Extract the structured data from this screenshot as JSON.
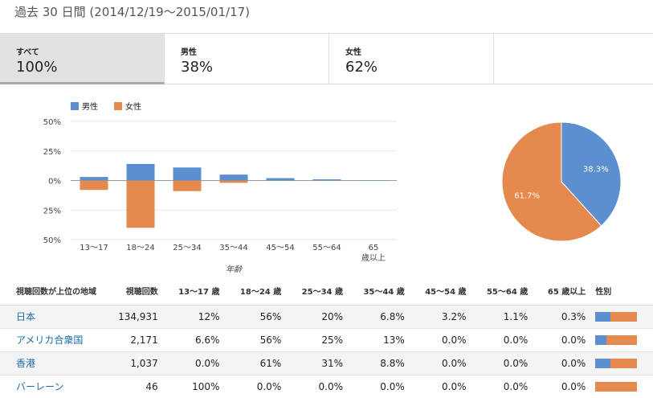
{
  "header": {
    "title": "過去 30 日間 (2014/12/19～2015/01/17)"
  },
  "tabs": [
    {
      "label": "すべて",
      "value": "100%"
    },
    {
      "label": "男性",
      "value": "38%"
    },
    {
      "label": "女性",
      "value": "62%"
    },
    {
      "label": "",
      "value": ""
    }
  ],
  "legend": {
    "male": "男性",
    "female": "女性"
  },
  "colors": {
    "male": "#5b8fcf",
    "female": "#e58a4e"
  },
  "chart_data": [
    {
      "type": "bar",
      "categories": [
        "13～17",
        "18～24",
        "25～34",
        "35～44",
        "45～54",
        "55～64",
        "65 歳以上"
      ],
      "series": [
        {
          "name": "男性",
          "values": [
            3,
            14,
            11,
            5,
            2,
            1,
            0.3
          ]
        },
        {
          "name": "女性",
          "values": [
            -8,
            -40,
            -9,
            -2,
            0,
            0,
            0
          ]
        }
      ],
      "xlabel": "年齢",
      "ylabel": "",
      "ylim": [
        -50,
        50
      ],
      "yticks": [
        "50%",
        "25%",
        "0%",
        "25%",
        "50%"
      ],
      "grid": true,
      "legend_position": "top-left"
    },
    {
      "type": "pie",
      "labels": [
        "男性",
        "女性"
      ],
      "values": [
        38.3,
        61.7
      ],
      "data_labels": [
        "38.3%",
        "61.7%"
      ]
    }
  ],
  "table": {
    "headers": [
      "視聴回数が上位の地域",
      "視聴回数",
      "13～17 歳",
      "18～24 歳",
      "25～34 歳",
      "35～44 歳",
      "45～54 歳",
      "55～64 歳",
      "65 歳以上",
      "性別"
    ],
    "rows": [
      {
        "region": "日本",
        "views": "134,931",
        "cells": [
          "12%",
          "56%",
          "20%",
          "6.8%",
          "3.2%",
          "1.1%",
          "0.3%"
        ],
        "male": 36
      },
      {
        "region": "アメリカ合衆国",
        "views": "2,171",
        "cells": [
          "6.6%",
          "56%",
          "25%",
          "13%",
          "0.0%",
          "0.0%",
          "0.0%"
        ],
        "male": 27
      },
      {
        "region": "香港",
        "views": "1,037",
        "cells": [
          "0.0%",
          "61%",
          "31%",
          "8.8%",
          "0.0%",
          "0.0%",
          "0.0%"
        ],
        "male": 35
      },
      {
        "region": "バーレーン",
        "views": "46",
        "cells": [
          "100%",
          "0.0%",
          "0.0%",
          "0.0%",
          "0.0%",
          "0.0%",
          "0.0%"
        ],
        "male": 0
      }
    ]
  }
}
